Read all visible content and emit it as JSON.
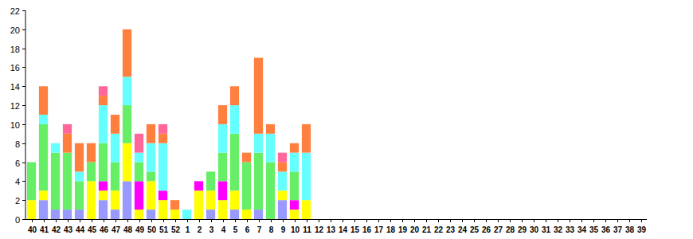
{
  "chart_data": {
    "type": "bar",
    "stacked": true,
    "grid": false,
    "categories": [
      "40",
      "41",
      "42",
      "43",
      "44",
      "45",
      "46",
      "47",
      "48",
      "49",
      "50",
      "51",
      "52",
      "1",
      "2",
      "3",
      "4",
      "5",
      "6",
      "7",
      "8",
      "9",
      "10",
      "11",
      "12",
      "13",
      "14",
      "15",
      "16",
      "17",
      "18",
      "19",
      "20",
      "21",
      "22",
      "23",
      "24",
      "25",
      "26",
      "27",
      "28",
      "29",
      "30",
      "31",
      "32",
      "33",
      "34",
      "35",
      "36",
      "37",
      "38",
      "39"
    ],
    "ylim": [
      0,
      22
    ],
    "yticks": [
      0,
      2,
      4,
      6,
      8,
      10,
      12,
      14,
      16,
      18,
      20,
      22
    ],
    "series": [
      {
        "color": "#9999ff",
        "values": [
          0,
          2,
          1,
          1,
          1,
          0,
          2,
          1,
          4,
          0,
          1,
          0,
          0,
          0,
          0,
          1,
          0,
          1,
          0,
          1,
          0,
          2,
          0,
          0,
          null,
          null,
          null,
          null,
          null,
          null,
          null,
          null,
          null,
          null,
          null,
          null,
          null,
          null,
          null,
          null,
          null,
          null,
          null,
          null,
          null,
          null,
          null,
          null,
          null,
          null,
          null,
          null
        ]
      },
      {
        "color": "#ffff00",
        "values": [
          2,
          1,
          0,
          0,
          0,
          4,
          1,
          2,
          4,
          1,
          3,
          2,
          1,
          0,
          3,
          2,
          2,
          2,
          1,
          0,
          0,
          1,
          1,
          2,
          null,
          null,
          null,
          null,
          null,
          null,
          null,
          null,
          null,
          null,
          null,
          null,
          null,
          null,
          null,
          null,
          null,
          null,
          null,
          null,
          null,
          null,
          null,
          null,
          null,
          null,
          null,
          null
        ]
      },
      {
        "color": "#ff00ff",
        "values": [
          0,
          0,
          0,
          0,
          0,
          0,
          1,
          0,
          0,
          3,
          0,
          1,
          0,
          0,
          1,
          0,
          2,
          0,
          0,
          0,
          0,
          0,
          1,
          0,
          null,
          null,
          null,
          null,
          null,
          null,
          null,
          null,
          null,
          null,
          null,
          null,
          null,
          null,
          null,
          null,
          null,
          null,
          null,
          null,
          null,
          null,
          null,
          null,
          null,
          null,
          null,
          null
        ]
      },
      {
        "color": "#66ee66",
        "values": [
          4,
          7,
          6,
          6,
          3,
          2,
          4,
          3,
          4,
          2,
          1,
          0,
          0,
          0,
          0,
          2,
          3,
          6,
          5,
          6,
          6,
          0,
          3,
          0,
          null,
          null,
          null,
          null,
          null,
          null,
          null,
          null,
          null,
          null,
          null,
          null,
          null,
          null,
          null,
          null,
          null,
          null,
          null,
          null,
          null,
          null,
          null,
          null,
          null,
          null,
          null,
          null
        ]
      },
      {
        "color": "#66ffff",
        "values": [
          0,
          1,
          1,
          0,
          1,
          0,
          4,
          3,
          3,
          1,
          3,
          5,
          0,
          1,
          0,
          0,
          3,
          3,
          0,
          2,
          3,
          2,
          2,
          5,
          null,
          null,
          null,
          null,
          null,
          null,
          null,
          null,
          null,
          null,
          null,
          null,
          null,
          null,
          null,
          null,
          null,
          null,
          null,
          null,
          null,
          null,
          null,
          null,
          null,
          null,
          null,
          null
        ]
      },
      {
        "color": "#ff7f3f",
        "values": [
          0,
          3,
          0,
          2,
          3,
          2,
          1,
          2,
          5,
          0,
          2,
          1,
          1,
          0,
          0,
          0,
          2,
          2,
          1,
          8,
          1,
          1,
          1,
          3,
          null,
          null,
          null,
          null,
          null,
          null,
          null,
          null,
          null,
          null,
          null,
          null,
          null,
          null,
          null,
          null,
          null,
          null,
          null,
          null,
          null,
          null,
          null,
          null,
          null,
          null,
          null,
          null
        ]
      },
      {
        "color": "#ff6699",
        "values": [
          0,
          0,
          0,
          1,
          0,
          0,
          1,
          0,
          0,
          2,
          0,
          1,
          0,
          0,
          0,
          0,
          0,
          0,
          0,
          0,
          0,
          1,
          0,
          0,
          null,
          null,
          null,
          null,
          null,
          null,
          null,
          null,
          null,
          null,
          null,
          null,
          null,
          null,
          null,
          null,
          null,
          null,
          null,
          null,
          null,
          null,
          null,
          null,
          null,
          null,
          null,
          null
        ]
      }
    ]
  }
}
